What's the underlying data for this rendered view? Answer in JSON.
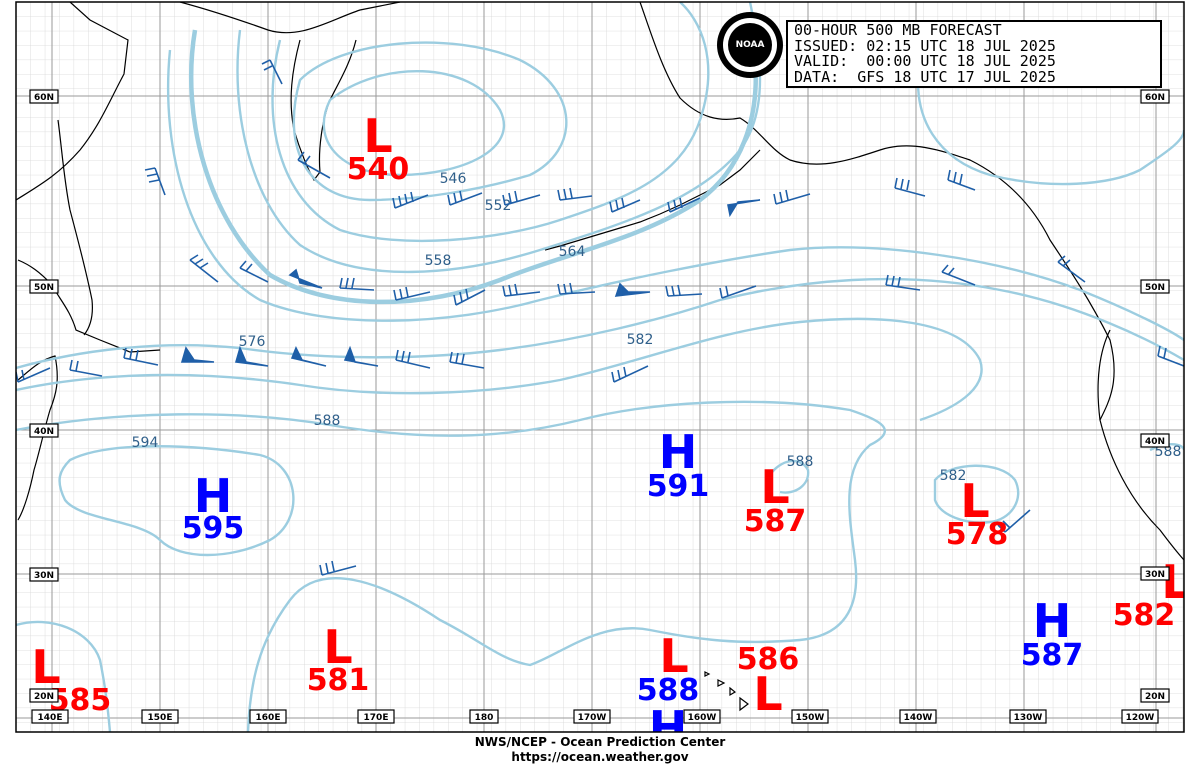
{
  "title": {
    "line1": "00-HOUR 500 MB FORECAST",
    "line2": "ISSUED: 02:15 UTC 18 JUL 2025",
    "line3": "VALID:  00:00 UTC 18 JUL 2025",
    "line4": "DATA:  GFS 18 UTC 17 JUL 2025"
  },
  "logo_text": "NOAA",
  "footer": {
    "line1": "NWS/NCEP - Ocean Prediction Center",
    "line2": "https://ocean.weather.gov"
  },
  "lat_labels": [
    "60N",
    "50N",
    "40N",
    "30N",
    "20N"
  ],
  "lon_labels": [
    "140E",
    "150E",
    "160E",
    "170E",
    "180",
    "170W",
    "160W",
    "150W",
    "140W",
    "130W",
    "120W"
  ],
  "contour_labels": [
    "546",
    "552",
    "558",
    "564",
    "576",
    "582",
    "588",
    "594",
    "588",
    "582",
    "588"
  ],
  "pressure_centers": [
    {
      "type": "L",
      "value": "540"
    },
    {
      "type": "H",
      "value": "595"
    },
    {
      "type": "H",
      "value": "591"
    },
    {
      "type": "L",
      "value": "587"
    },
    {
      "type": "L",
      "value": "578"
    },
    {
      "type": "L",
      "value": "581"
    },
    {
      "type": "L",
      "value": "585"
    },
    {
      "type": "L",
      "value": "586"
    },
    {
      "type": "L",
      "value": "582"
    },
    {
      "type": "H",
      "value": "587"
    },
    {
      "type": "H",
      "value": "588"
    },
    {
      "type": "L",
      "value": ""
    }
  ],
  "colors": {
    "high": "#0000ff",
    "low": "#ff0000",
    "contour": "#9ccde0",
    "contour_label": "#2f5f8a",
    "wind_barb": "#1f5fa8",
    "coast": "#000000",
    "grid_major": "#9a9a9a",
    "grid_minor": "#d6d6d6"
  }
}
